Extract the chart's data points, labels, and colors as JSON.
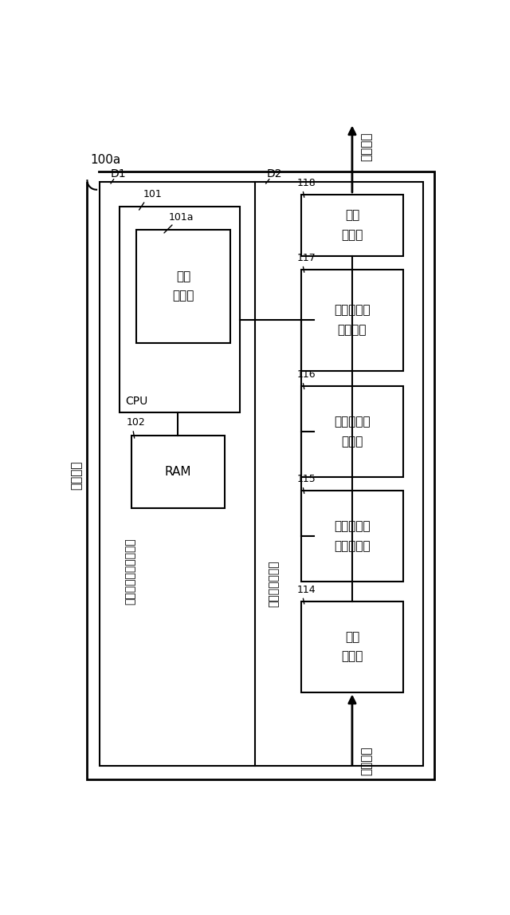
{
  "fig_width": 6.4,
  "fig_height": 11.47,
  "bg_color": "#ffffff",
  "outer_label": "100a",
  "outer_label2": "解析装置",
  "d1_label": "D1",
  "d2_label": "D2",
  "control_plane_label": "コントロールプレーン",
  "data_plane_label": "データプレーン",
  "cpu_label": "CPU",
  "comm_label": "通信\n管理部",
  "ram_label": "RAM",
  "input_port_label": "入力\nポート",
  "timestamp_label": "タイムスタ\nンプ生成部",
  "span_info_label": "スパン情報\n解析部",
  "candidate_trace_label": "候補トレー\nス生成部",
  "output_port_label": "出力\nポート",
  "id_101": "101",
  "id_101a": "101a",
  "id_102": "102",
  "id_114": "114",
  "id_115": "115",
  "id_116": "116",
  "id_117": "117",
  "id_118": "118",
  "packet_label": "パケット"
}
